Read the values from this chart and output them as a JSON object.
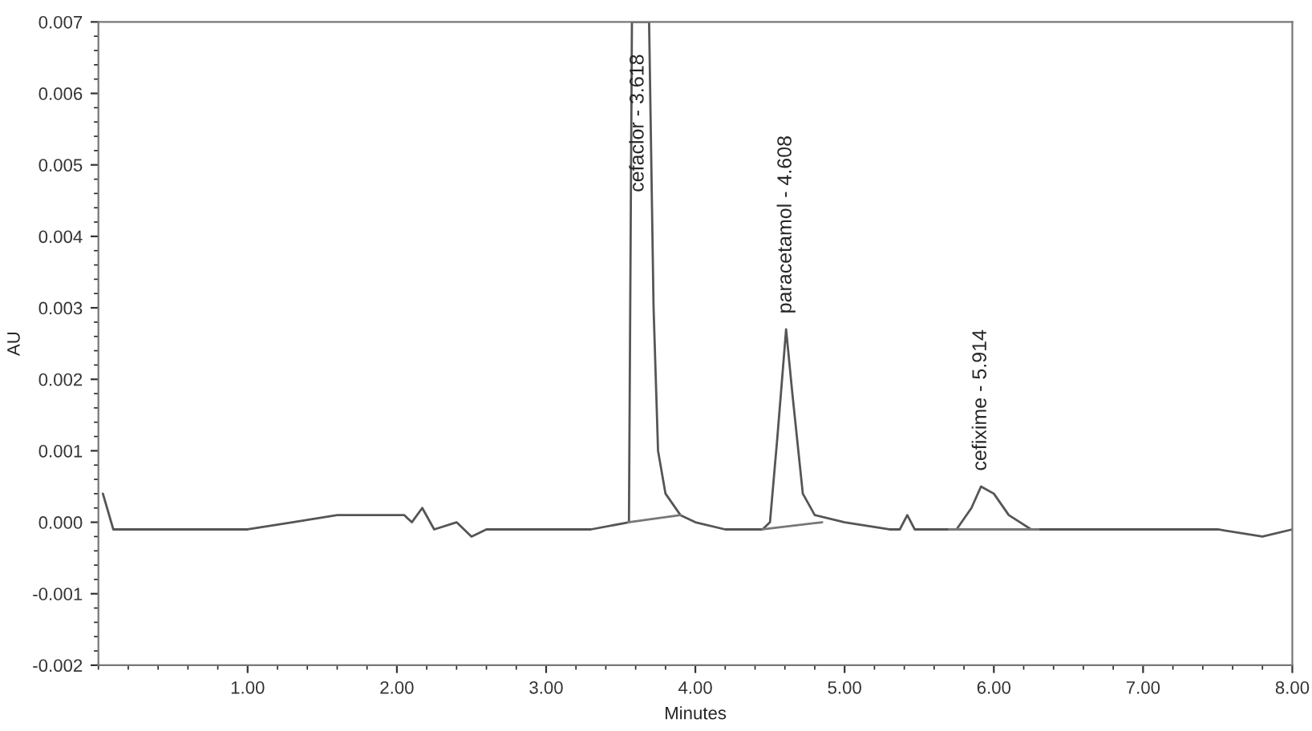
{
  "chart_data": {
    "type": "line",
    "xlabel": "Minutes",
    "ylabel": "AU",
    "xlim": [
      0,
      8
    ],
    "ylim": [
      -0.002,
      0.007
    ],
    "xticks": [
      {
        "value": 1,
        "label": "1.00"
      },
      {
        "value": 2,
        "label": "2.00"
      },
      {
        "value": 3,
        "label": "3.00"
      },
      {
        "value": 4,
        "label": "4.00"
      },
      {
        "value": 5,
        "label": "5.00"
      },
      {
        "value": 6,
        "label": "6.00"
      },
      {
        "value": 7,
        "label": "7.00"
      },
      {
        "value": 8,
        "label": "8.00"
      }
    ],
    "yticks": [
      {
        "value": -0.002,
        "label": "-0.002"
      },
      {
        "value": -0.001,
        "label": "-0.001"
      },
      {
        "value": 0,
        "label": "0.000"
      },
      {
        "value": 0.001,
        "label": "0.001"
      },
      {
        "value": 0.002,
        "label": "0.002"
      },
      {
        "value": 0.003,
        "label": "0.003"
      },
      {
        "value": 0.004,
        "label": "0.004"
      },
      {
        "value": 0.005,
        "label": "0.005"
      },
      {
        "value": 0.006,
        "label": "0.006"
      },
      {
        "value": 0.007,
        "label": "0.007"
      }
    ],
    "series": [
      {
        "color": "#555555",
        "x": [
          0.03,
          0.1,
          0.2,
          0.5,
          1.0,
          1.3,
          1.6,
          1.75,
          2.0,
          2.05,
          2.1,
          2.17,
          2.25,
          2.4,
          2.5,
          2.6,
          3.0,
          3.3,
          3.555,
          3.575,
          3.69,
          3.72,
          3.75,
          3.8,
          3.9,
          4.0,
          4.2,
          4.45,
          4.5,
          4.55,
          4.608,
          4.65,
          4.72,
          4.8,
          5.0,
          5.3,
          5.37,
          5.42,
          5.47,
          5.6,
          5.75,
          5.85,
          5.914,
          6.0,
          6.1,
          6.25,
          6.5,
          7.0,
          7.5,
          7.8,
          8.0
        ],
        "values": [
          0.0004,
          -0.0001,
          -0.0001,
          -0.0001,
          -0.0001,
          0.0,
          0.0001,
          0.0001,
          0.0001,
          0.0001,
          0.0,
          0.0002,
          -0.0001,
          0.0,
          -0.0002,
          -0.0001,
          -0.0001,
          -0.0001,
          0.0,
          0.007,
          0.007,
          0.003,
          0.001,
          0.0004,
          0.0001,
          0.0,
          -0.0001,
          -0.0001,
          0.0,
          0.0012,
          0.0027,
          0.0018,
          0.0004,
          0.0001,
          0.0,
          -0.0001,
          -0.0001,
          0.0001,
          -0.0001,
          -0.0001,
          -0.0001,
          0.0002,
          0.0005,
          0.0004,
          0.0001,
          -0.0001,
          -0.0001,
          -0.0001,
          -0.0001,
          -0.0002,
          -0.0001
        ]
      },
      {
        "color": "#777777",
        "x": [
          3.55,
          3.9,
          3.95,
          4.45,
          4.85,
          4.9,
          5.7,
          6.3
        ],
        "values": [
          0.0,
          0.0001,
          null,
          -0.0001,
          0.0,
          null,
          -0.0001,
          -0.0001
        ]
      }
    ],
    "annotations": [
      {
        "text": "cefaclor - 3.618",
        "x": 3.618,
        "y": 0.0044
      },
      {
        "text": "paracetamol - 4.608",
        "x": 4.608,
        "y": 0.0027
      },
      {
        "text": "cefixime - 5.914",
        "x": 5.914,
        "y": 0.0005
      }
    ],
    "grid": false,
    "legend": false,
    "marker": "none",
    "line_style": "solid"
  }
}
